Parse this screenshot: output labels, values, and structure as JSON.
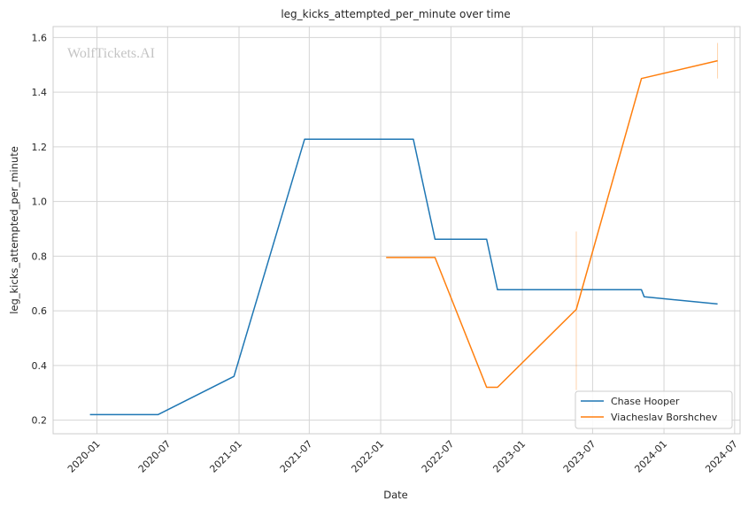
{
  "chart_data": {
    "type": "line",
    "title": "leg_kicks_attempted_per_minute over time",
    "xlabel": "Date",
    "ylabel": "leg_kicks_attempted_per_minute",
    "watermark": "WolfTickets.AI",
    "grid": true,
    "legend_position": "bottom-right",
    "x_ticks": [
      "2020-01",
      "2020-07",
      "2021-01",
      "2021-07",
      "2022-01",
      "2022-07",
      "2023-01",
      "2023-07",
      "2024-01",
      "2024-07"
    ],
    "y_ticks": [
      "0.2",
      "0.4",
      "0.6",
      "0.8",
      "1.0",
      "1.2",
      "1.4",
      "1.6"
    ],
    "xlim": [
      "2019-09-10",
      "2024-07-15"
    ],
    "ylim": [
      0.15,
      1.64
    ],
    "series": [
      {
        "name": "Chase Hooper",
        "color": "#1f77b4",
        "points": [
          {
            "x": "2019-12-14",
            "y": 0.22
          },
          {
            "x": "2020-06-06",
            "y": 0.22
          },
          {
            "x": "2020-12-19",
            "y": 0.36
          },
          {
            "x": "2021-06-19",
            "y": 1.228
          },
          {
            "x": "2022-03-26",
            "y": 1.228
          },
          {
            "x": "2022-05-21",
            "y": 0.862
          },
          {
            "x": "2022-10-01",
            "y": 0.862
          },
          {
            "x": "2022-10-29",
            "y": 0.677
          },
          {
            "x": "2023-11-04",
            "y": 0.677
          },
          {
            "x": "2023-11-11",
            "y": 0.651
          },
          {
            "x": "2024-05-18",
            "y": 0.625
          }
        ]
      },
      {
        "name": "Viacheslav Borshchev",
        "color": "#ff7f0e",
        "points": [
          {
            "x": "2022-01-15",
            "y": 0.795
          },
          {
            "x": "2022-05-21",
            "y": 0.795
          },
          {
            "x": "2022-10-01",
            "y": 0.32
          },
          {
            "x": "2022-10-29",
            "y": 0.32
          },
          {
            "x": "2023-05-20",
            "y": 0.605
          },
          {
            "x": "2023-11-04",
            "y": 1.45
          },
          {
            "x": "2024-05-18",
            "y": 1.515
          }
        ],
        "error_bars": [
          {
            "x": "2023-05-20",
            "low": 0.31,
            "high": 0.89
          },
          {
            "x": "2024-05-18",
            "low": 1.45,
            "high": 1.58
          }
        ]
      }
    ]
  }
}
